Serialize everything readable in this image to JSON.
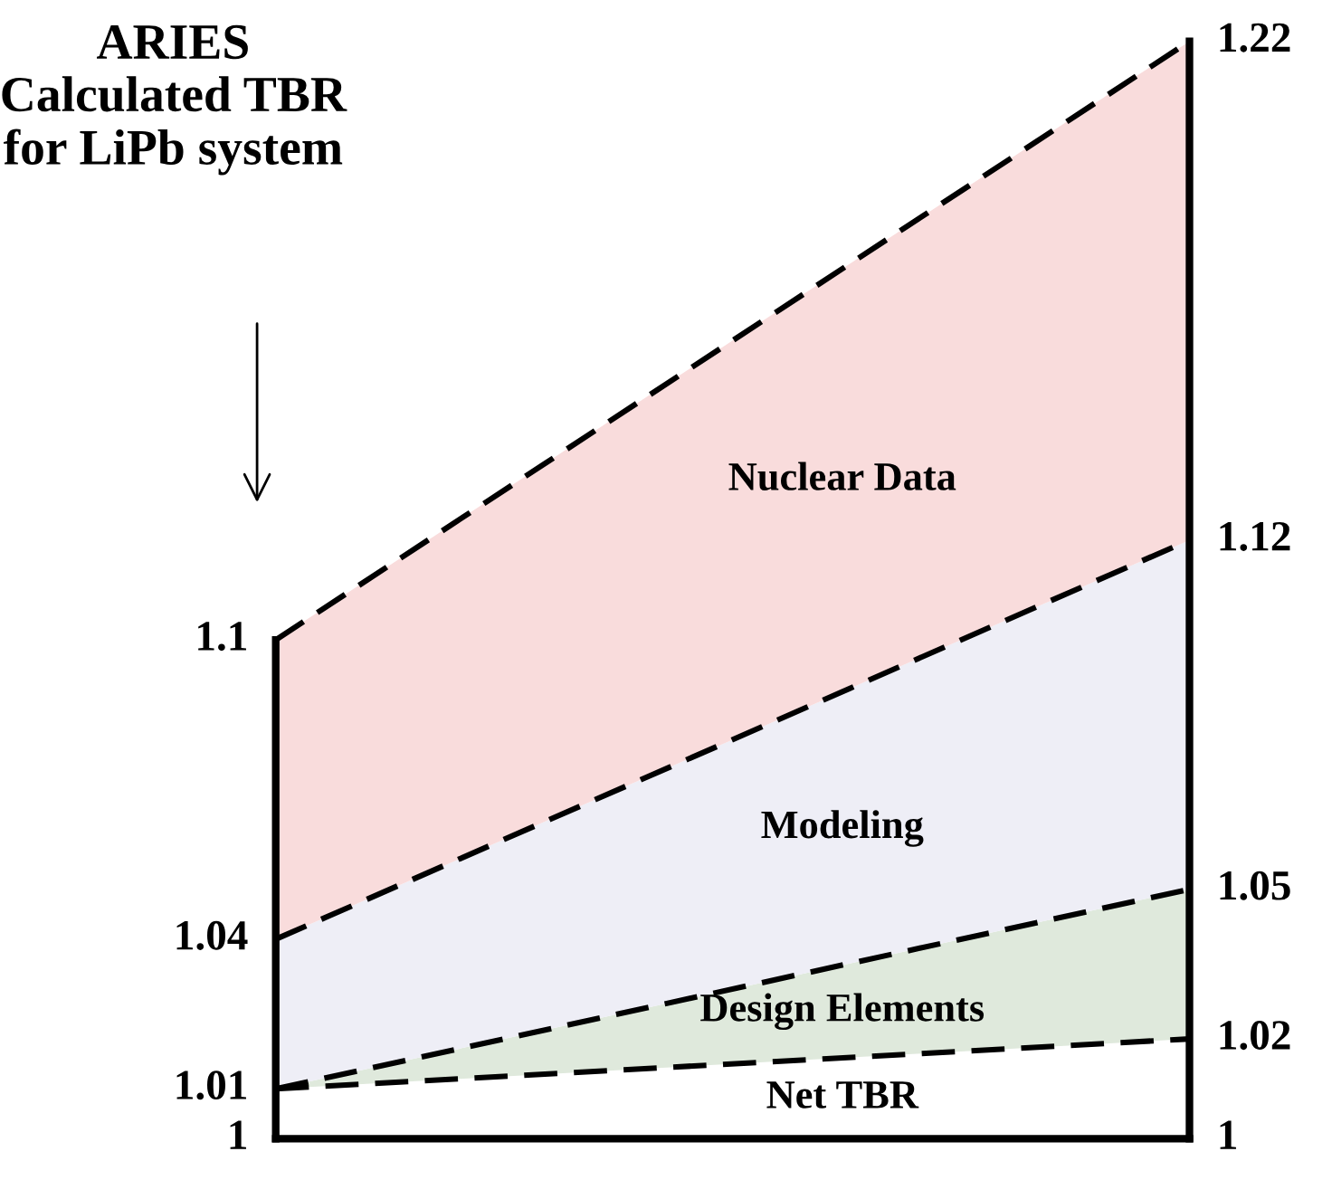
{
  "chart_data": {
    "type": "area",
    "title": "ARIES\nCalculated TBR\nfor LiPb system",
    "categories": [
      null,
      null
    ],
    "series": [
      {
        "name": "Net TBR",
        "color": "#ffffff",
        "values": [
          1.01,
          1.02
        ],
        "value_labels": [
          "1.01",
          "1.02"
        ]
      },
      {
        "name": "Design Elements",
        "color": "#dfe9dc",
        "values": [
          1.01,
          1.05
        ],
        "value_labels": [
          null,
          "1.05"
        ]
      },
      {
        "name": "Modeling",
        "color": "#eeeef6",
        "values": [
          1.04,
          1.12
        ],
        "value_labels": [
          "1.04",
          "1.12"
        ]
      },
      {
        "name": "Nuclear Data",
        "color": "#f9dcdc",
        "values": [
          1.1,
          1.22
        ],
        "value_labels": [
          "1.1",
          "1.22"
        ]
      }
    ],
    "ylim": [
      1,
      1.22
    ],
    "annotations": [
      "1",
      "1"
    ],
    "line_style": "dashed",
    "legend": false
  }
}
